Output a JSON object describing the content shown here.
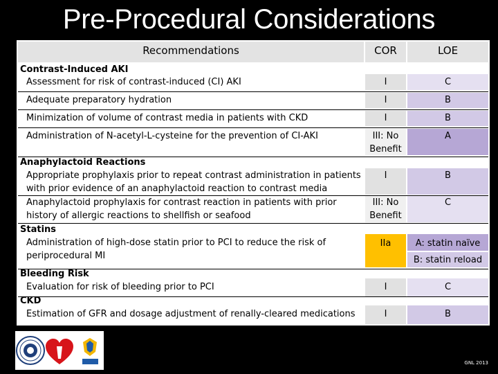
{
  "title": "Pre-Procedural Considerations",
  "colors": {
    "header_bg": "#e3e3e3",
    "cor_class_I": "#e1e1e1",
    "cor_class_III": "#f0f0f0",
    "cor_class_IIa": "#ffc000",
    "loe_A": "#b6a7d5",
    "loe_B": "#d2c9e6",
    "loe_C": "#e5e0f1"
  },
  "table": {
    "headers": {
      "recommendations": "Recommendations",
      "cor": "COR",
      "loe": "LOE"
    },
    "sections": {
      "aki": "Contrast-Induced AKI",
      "anaphylactoid": "Anaphylactoid Reactions",
      "statins": "Statins",
      "bleeding": "Bleeding Risk",
      "ckd": "CKD"
    },
    "rows": [
      {
        "text": "Assessment for risk of contrast-induced (CI) AKI",
        "cor": "I",
        "loe": "C"
      },
      {
        "text": "Adequate preparatory hydration",
        "cor": "I",
        "loe": "B"
      },
      {
        "text": "Minimization of volume of contrast media in patients with CKD",
        "cor": "I",
        "loe": "B"
      },
      {
        "text": "Administration of N-acetyl-L-cysteine for the prevention of CI-AKI",
        "cor_line1": "III: No",
        "cor_line2": "Benefit",
        "loe": "A"
      },
      {
        "line1": "Appropriate prophylaxis prior to repeat contrast administration in patients",
        "line2": "with prior evidence of an anaphylactoid reaction to contrast media",
        "cor": "I",
        "loe": "B"
      },
      {
        "line1": "Anaphylactoid prophylaxis for contrast reaction in patients with prior",
        "line2": "history of allergic reactions to shellfish or seafood",
        "cor_line1": "III: No",
        "cor_line2": "Benefit",
        "loe": "C"
      },
      {
        "line1": "Administration of high-dose statin prior to PCI to reduce the risk of",
        "line2": "periprocedural MI",
        "cor": "IIa",
        "loe_line1": "A: statin naïve",
        "loe_line2": "B: statin reload"
      },
      {
        "text": "Evaluation for risk of bleeding prior to PCI",
        "cor": "I",
        "loe": "C"
      },
      {
        "text": "Estimation of GFR and dosage adjustment of renally-cleared medications",
        "cor": "I",
        "loe": "B"
      }
    ]
  },
  "footer": {
    "note": "GNL 2013"
  },
  "logos": [
    "acc-seal",
    "aha-heart",
    "scai"
  ]
}
